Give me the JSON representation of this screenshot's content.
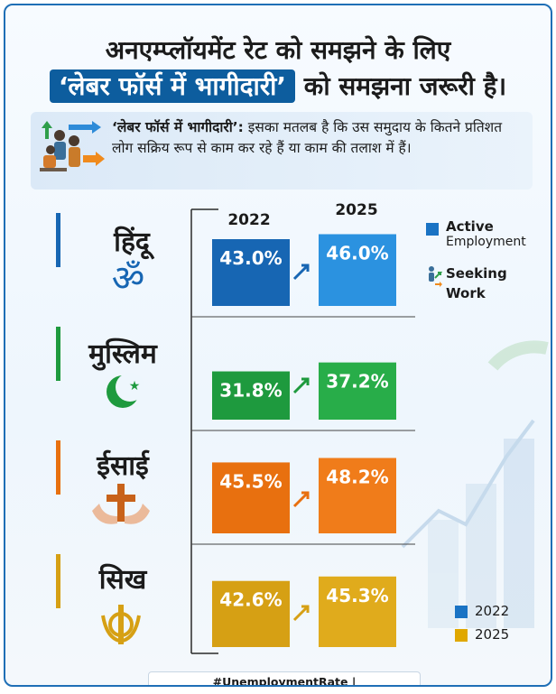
{
  "header": {
    "line1": "अनएम्प्लॉयमेंट रेट को समझने के लिए",
    "line2_highlight": "‘लेबर फॉर्स में भागीदारी’",
    "line2_rest": " को समझना जरूरी है।"
  },
  "definition": {
    "term": "‘लेबर फॉर्स में भागीदारी’:",
    "text": " इसका मतलब है कि उस समुदाय के कितने प्रतिशत लोग सक्रिय रूप से काम कर रहे हैं या काम की तलाश में हैं।",
    "icon": "workers-icon"
  },
  "legend_top": {
    "active_line1": "Active",
    "active_line2": "Employment",
    "seeking_line1": "Seeking",
    "seeking_line2": "Work",
    "active_color": "#1a73c4"
  },
  "legend_bottom": {
    "items": [
      {
        "label": "2022",
        "color": "#1a73c4"
      },
      {
        "label": "2025",
        "color": "#e0a800"
      }
    ]
  },
  "footer": "#UnemploymentRate | #LaborForceParticipation",
  "chart_data": {
    "type": "bar",
    "series": [
      {
        "name": "2022",
        "values": [
          43.0,
          31.8,
          45.5,
          42.6
        ]
      },
      {
        "name": "2025",
        "values": [
          46.0,
          37.2,
          48.2,
          45.3
        ]
      }
    ],
    "categories": [
      "हिंदू",
      "मुस्लिम",
      "ईसाई",
      "सिख"
    ],
    "value_labels": [
      [
        "43.0%",
        "46.0%"
      ],
      [
        "31.8%",
        "37.2%"
      ],
      [
        "45.5%",
        "48.2%"
      ],
      [
        "42.6%",
        "45.3%"
      ]
    ],
    "year_labels": [
      "2022",
      "2025"
    ],
    "group_icons": [
      "om-icon",
      "crescent-star-icon",
      "cross-hands-icon",
      "khanda-icon"
    ],
    "group_colors": [
      {
        "bar2022": "#1766b3",
        "bar2025": "#2b92e0",
        "accent": "#1766b3"
      },
      {
        "bar2022": "#1e9a3e",
        "bar2025": "#28ad49",
        "accent": "#1e9a3e"
      },
      {
        "bar2022": "#e8700f",
        "bar2025": "#f07c1a",
        "accent": "#e8700f"
      },
      {
        "bar2022": "#d6a014",
        "bar2025": "#e0ab1c",
        "accent": "#d6a014"
      }
    ]
  }
}
